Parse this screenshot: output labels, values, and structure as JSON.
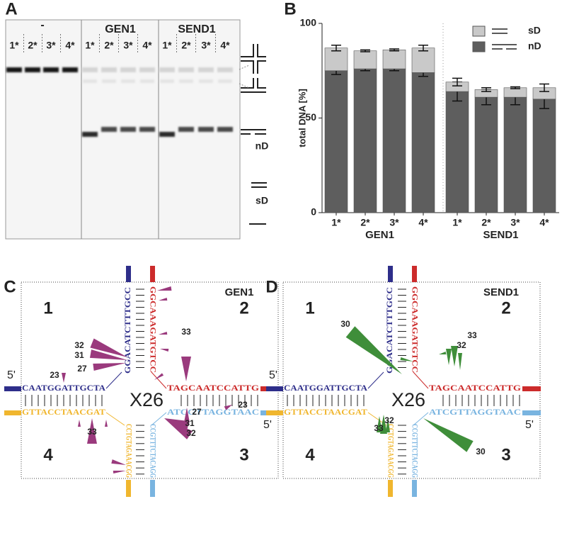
{
  "panel_a": {
    "letter": "A",
    "groups": [
      "-",
      "GEN1",
      "SEND1"
    ],
    "lanes": [
      "1*",
      "2*",
      "3*",
      "4*",
      "1*",
      "2*",
      "3*",
      "4*",
      "1*",
      "2*",
      "3*",
      "4*"
    ],
    "products": [
      "nD",
      "sD"
    ]
  },
  "chart_data": {
    "type": "bar",
    "stacked": true,
    "letter": "B",
    "ylabel": "total DNA [%]",
    "categories": [
      "1*",
      "2*",
      "3*",
      "4*",
      "1*",
      "2*",
      "3*",
      "4*"
    ],
    "groups": [
      "GEN1",
      "SEND1"
    ],
    "ylim": [
      0,
      100
    ],
    "yticks": [
      0,
      50,
      100
    ],
    "series": [
      {
        "name": "nD",
        "color": "#5e5e5e",
        "values": [
          75,
          76,
          76,
          74,
          64,
          61,
          61,
          60
        ],
        "errors": [
          2,
          1,
          1,
          2,
          5,
          4,
          4,
          5
        ]
      },
      {
        "name": "sD",
        "color": "#c9c9c9",
        "values": [
          12,
          9.5,
          10,
          13,
          5,
          4,
          5,
          6
        ],
        "errors": [
          1.5,
          0.5,
          0.5,
          1.5,
          2,
          1,
          0.5,
          2
        ]
      }
    ]
  },
  "panel_c": {
    "letter": "C",
    "enzyme": "GEN1",
    "quadrants": [
      "1",
      "2",
      "3",
      "4"
    ],
    "ends": [
      "5'",
      "5'"
    ],
    "center": "X26",
    "strands": [
      "GGACATCTTTGCC",
      "GGCAAAGATGTCC",
      "CAATGGATTGCTA",
      "TAGCAATCCATTG",
      "GTTACCTAACGAT",
      "ATCGTTAGGTAAC",
      "CCTGTAGAAACGG",
      "CCGTTTCTACAGG"
    ],
    "cut_labels": [
      "32",
      "31",
      "27",
      "23",
      "33",
      "33",
      "27",
      "31",
      "32",
      "23"
    ]
  },
  "panel_d": {
    "letter": "D",
    "enzyme": "SEND1",
    "quadrants": [
      "1",
      "2",
      "3",
      "4"
    ],
    "ends": [
      "5'",
      "5'"
    ],
    "center": "X26",
    "strands": [
      "GGACATCTTTGCC",
      "GGCAAAGATGTCC",
      "CAATGGATTGCTA",
      "TAGCAATCCATTG",
      "GTTACCTAACGAT",
      "ATCGTTAGGTAAC",
      "CCTGTAGAAACGG",
      "CCGTTTCTACAGG"
    ],
    "cut_labels": [
      "30",
      "33",
      "32",
      "33",
      "32",
      "30"
    ]
  }
}
